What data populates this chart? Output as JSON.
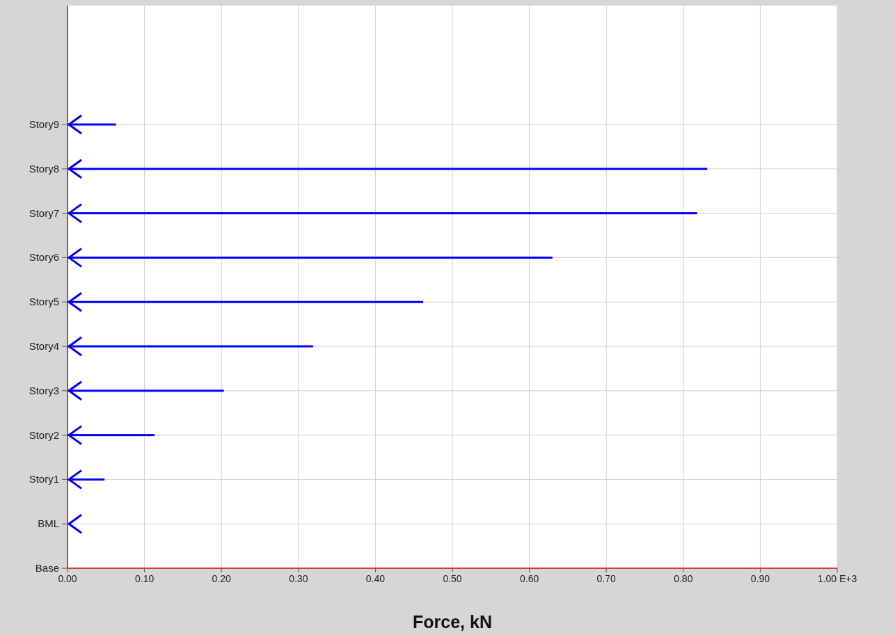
{
  "chart_data": {
    "type": "bar",
    "orientation": "horizontal",
    "xlabel": "Force, kN",
    "categories": [
      "Story9",
      "Story8",
      "Story7",
      "Story6",
      "Story5",
      "Story4",
      "Story3",
      "Story2",
      "Story1",
      "BML",
      "Base"
    ],
    "values": [
      0.063,
      0.831,
      0.818,
      0.63,
      0.462,
      0.319,
      0.203,
      0.113,
      0.048,
      0,
      null
    ],
    "color": "#0000ff",
    "xlim": [
      0,
      1
    ],
    "xticks": [
      {
        "value": 0,
        "label": "0.00"
      },
      {
        "value": 0.1,
        "label": "0.10"
      },
      {
        "value": 0.2,
        "label": "0.20"
      },
      {
        "value": 0.3,
        "label": "0.30"
      },
      {
        "value": 0.4,
        "label": "0.40"
      },
      {
        "value": 0.5,
        "label": "0.50"
      },
      {
        "value": 0.6,
        "label": "0.60"
      },
      {
        "value": 0.7,
        "label": "0.70"
      },
      {
        "value": 0.8,
        "label": "0.80"
      },
      {
        "value": 0.9,
        "label": "0.90"
      },
      {
        "value": 1,
        "label": "1.00 E+3"
      }
    ],
    "grid": true
  }
}
